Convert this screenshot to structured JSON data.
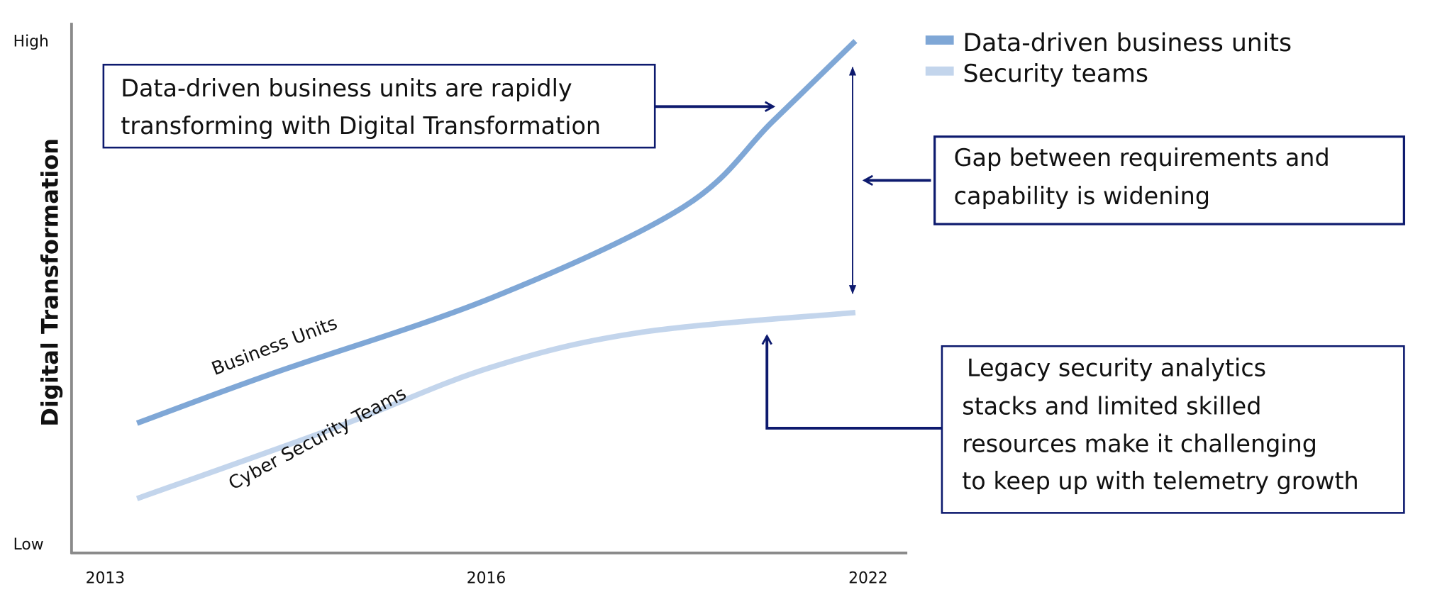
{
  "chart_data": {
    "type": "line",
    "title": "",
    "xlabel": "",
    "ylabel": "Digital Transformation",
    "x_ticks": [
      "2013",
      "2016",
      "2022"
    ],
    "y_ticks": [
      "Low",
      "High"
    ],
    "ylim": [
      0,
      100
    ],
    "grid": false,
    "legend_position": "top-right",
    "series": [
      {
        "name": "Data-driven business units",
        "curve_label": "Business Units",
        "color": "#7fa7d6",
        "x": [
          2013.25,
          2014.33,
          2016.1,
          2019.1,
          2020.5,
          2021.8
        ],
        "y": [
          24,
          34,
          49,
          67,
          84,
          100
        ]
      },
      {
        "name": "Security teams",
        "curve_label": "Cyber Security  Teams",
        "color": "#c3d5ec",
        "x": [
          2013.25,
          2014.8,
          2016.05,
          2018.4,
          2021.8
        ],
        "y": [
          9,
          23,
          35,
          42,
          46
        ]
      }
    ],
    "annotations": [
      {
        "id": "transform",
        "lines": [
          "Data-driven business units are rapidly",
          "transforming with Digital Transformation"
        ]
      },
      {
        "id": "gap",
        "lines": [
          "Gap between requirements and",
          "capability is widening"
        ]
      },
      {
        "id": "legacy",
        "lines": [
          " Legacy security analytics",
          "stacks and limited skilled",
          "resources make it challenging",
          "to keep up with telemetry growth"
        ]
      }
    ],
    "annotation_color": "#0d1a6e",
    "axis_color": "#8a8a8a"
  }
}
